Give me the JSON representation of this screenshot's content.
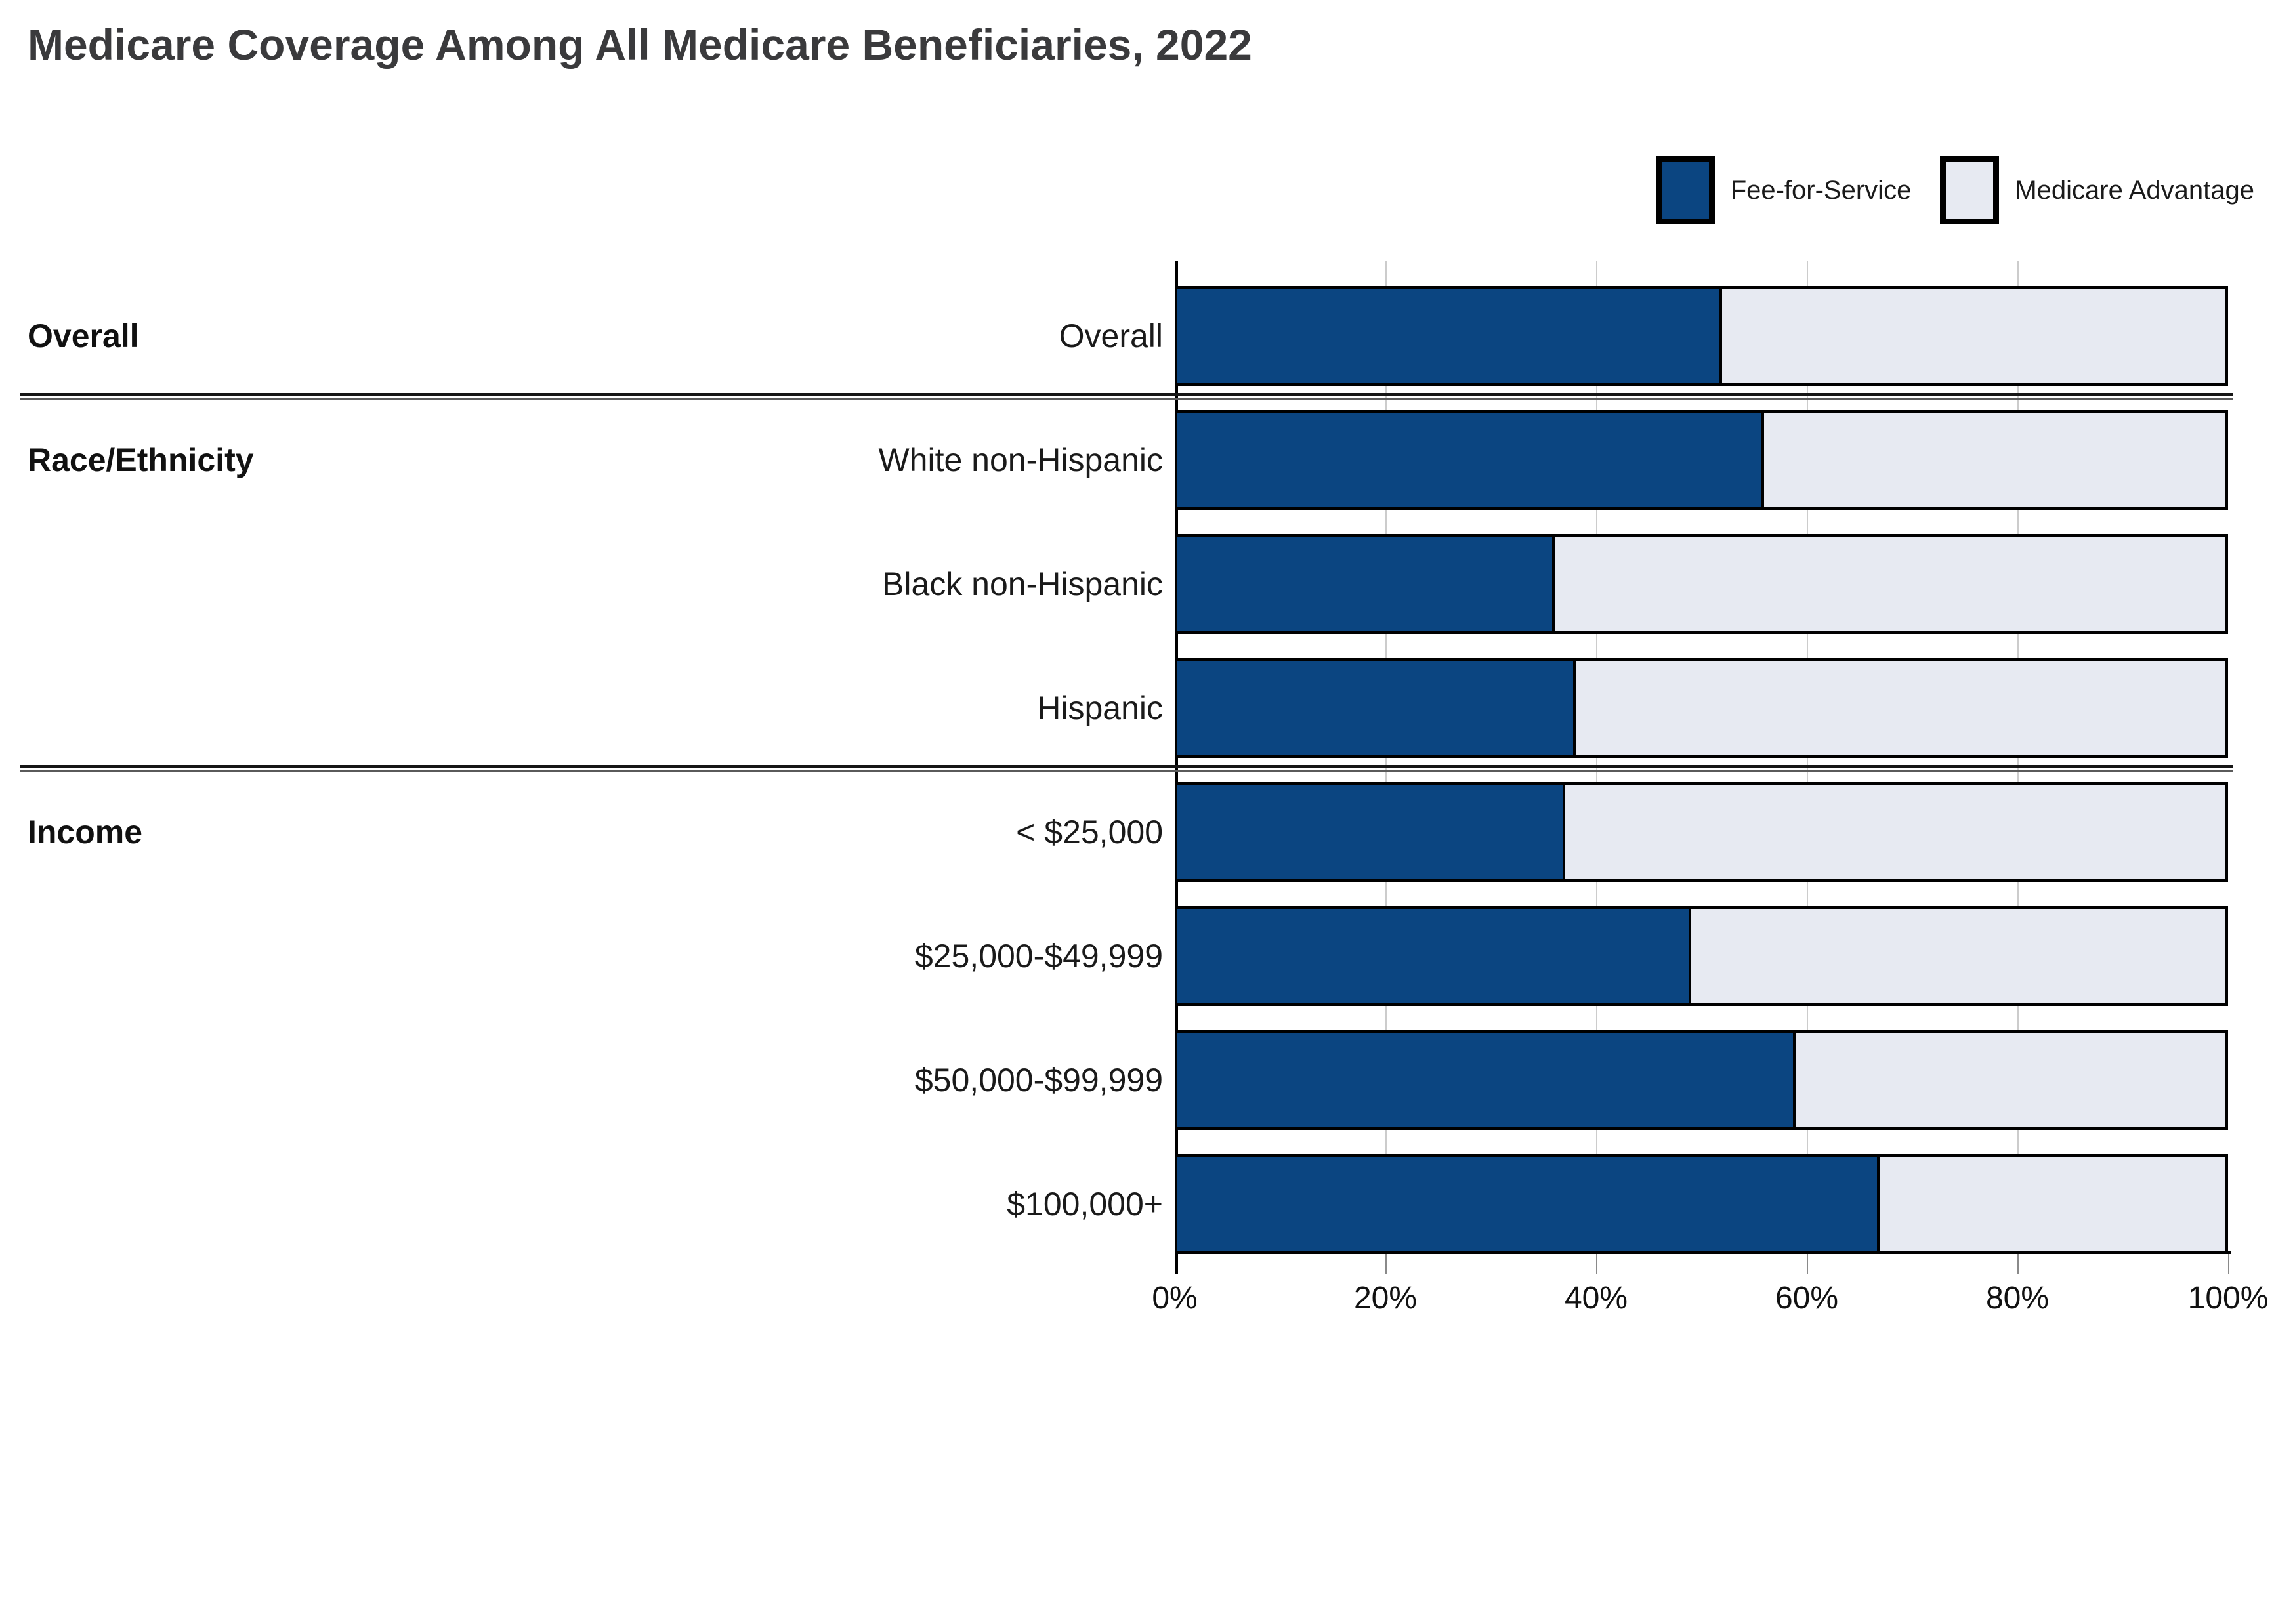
{
  "title": "Medicare Coverage Among All Medicare Beneficiaries, 2022",
  "legend": {
    "items": [
      {
        "label": "Fee-for-Service",
        "color": "#0B4581",
        "swatch": "navy-filled-black-border"
      },
      {
        "label": "Medicare Advantage",
        "color": "#E7EAF2",
        "swatch": "light-filled-black-border"
      }
    ]
  },
  "chart_data": {
    "type": "bar",
    "orientation": "horizontal",
    "stacked": true,
    "unit": "percent",
    "title": "Medicare Coverage Among All Medicare Beneficiaries, 2022",
    "categories": [
      "Overall",
      "White non-Hispanic",
      "Black non-Hispanic",
      "Hispanic",
      "< $25,000",
      "$25,000-$49,999",
      "$50,000-$99,999",
      "$100,000+"
    ],
    "series": [
      {
        "name": "Fee-for-Service",
        "color": "#0B4581",
        "values": [
          52,
          56,
          36,
          38,
          37,
          49,
          59,
          67
        ]
      },
      {
        "name": "Medicare Advantage",
        "color": "#E7EAF2",
        "values": [
          48,
          44,
          64,
          62,
          63,
          51,
          41,
          33
        ]
      }
    ],
    "groups": [
      {
        "label": "Overall",
        "categories": [
          "Overall"
        ]
      },
      {
        "label": "Race/Ethnicity",
        "categories": [
          "White non-Hispanic",
          "Black non-Hispanic",
          "Hispanic"
        ]
      },
      {
        "label": "Income",
        "categories": [
          "< $25,000",
          "$25,000-$49,999",
          "$50,000-$99,999",
          "$100,000+"
        ]
      }
    ],
    "xlim": [
      0,
      100
    ],
    "x_ticks": [
      "0%",
      "20%",
      "40%",
      "60%",
      "80%",
      "100%"
    ],
    "grid": true,
    "legend_position": "top-right",
    "colors": {
      "fee_for_service": "#0B4581",
      "medicare_advantage": "#E7EAF2",
      "bar_border": "#000000",
      "gridline": "#cccccc",
      "title_text": "#3a3a3c",
      "label_text": "#1a1a1a"
    }
  }
}
